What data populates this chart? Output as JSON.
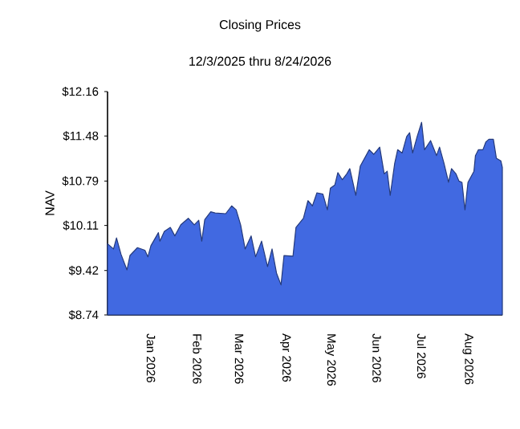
{
  "chart_data": {
    "type": "area",
    "title": "Closing Prices",
    "subtitle": "12/3/2025 thru 8/24/2026",
    "ylabel": "NAV",
    "xlim": [
      "2025-12-03",
      "2026-08-24"
    ],
    "ylim": [
      8.74,
      12.16
    ],
    "xticks": [
      {
        "value": "2026-01-01",
        "label": "Jan 2026"
      },
      {
        "value": "2026-02-01",
        "label": "Feb 2026"
      },
      {
        "value": "2026-03-01",
        "label": "Mar 2026"
      },
      {
        "value": "2026-04-01",
        "label": "Apr 2026"
      },
      {
        "value": "2026-05-01",
        "label": "May 2026"
      },
      {
        "value": "2026-06-01",
        "label": "Jun 2026"
      },
      {
        "value": "2026-07-01",
        "label": "Jul 2026"
      },
      {
        "value": "2026-08-01",
        "label": "Aug 2026"
      }
    ],
    "yticks": [
      {
        "value": 8.74,
        "label": "$8.74"
      },
      {
        "value": 9.42,
        "label": "$9.42"
      },
      {
        "value": 10.11,
        "label": "$10.11"
      },
      {
        "value": 10.79,
        "label": "$10.79"
      },
      {
        "value": 11.48,
        "label": "$11.48"
      },
      {
        "value": 12.16,
        "label": "$12.16"
      }
    ],
    "grid": false,
    "legend": false,
    "series": [
      {
        "color": "#4169e1",
        "x": [
          "2025-12-03",
          "2025-12-07",
          "2025-12-09",
          "2025-12-12",
          "2025-12-16",
          "2025-12-18",
          "2025-12-23",
          "2025-12-28",
          "2025-12-30",
          "2026-01-01",
          "2026-01-06",
          "2026-01-07",
          "2026-01-10",
          "2026-01-14",
          "2026-01-17",
          "2026-01-21",
          "2026-01-26",
          "2026-01-30",
          "2026-02-02",
          "2026-02-04",
          "2026-02-06",
          "2026-02-10",
          "2026-02-13",
          "2026-02-20",
          "2026-02-24",
          "2026-02-27",
          "2026-03-02",
          "2026-03-05",
          "2026-03-09",
          "2026-03-12",
          "2026-03-16",
          "2026-03-20",
          "2026-03-23",
          "2026-03-26",
          "2026-03-29",
          "2026-03-31",
          "2026-04-06",
          "2026-04-08",
          "2026-04-13",
          "2026-04-16",
          "2026-04-19",
          "2026-04-22",
          "2026-04-26",
          "2026-04-29",
          "2026-05-01",
          "2026-05-04",
          "2026-05-06",
          "2026-05-09",
          "2026-05-12",
          "2026-05-14",
          "2026-05-18",
          "2026-05-21",
          "2026-05-27",
          "2026-05-30",
          "2026-06-03",
          "2026-06-06",
          "2026-06-08",
          "2026-06-10",
          "2026-06-13",
          "2026-06-15",
          "2026-06-18",
          "2026-06-21",
          "2026-06-23",
          "2026-06-25",
          "2026-06-28",
          "2026-07-01",
          "2026-07-03",
          "2026-07-07",
          "2026-07-11",
          "2026-07-13",
          "2026-07-16",
          "2026-07-19",
          "2026-07-21",
          "2026-07-24",
          "2026-07-26",
          "2026-07-28",
          "2026-07-30",
          "2026-08-01",
          "2026-08-05",
          "2026-08-06",
          "2026-08-08",
          "2026-08-11",
          "2026-08-13",
          "2026-08-15",
          "2026-08-18",
          "2026-08-20",
          "2026-08-23",
          "2026-08-24"
        ],
        "values": [
          9.83,
          9.75,
          9.92,
          9.67,
          9.43,
          9.65,
          9.77,
          9.73,
          9.63,
          9.8,
          10.0,
          9.87,
          10.02,
          10.08,
          9.95,
          10.12,
          10.22,
          10.12,
          10.19,
          9.87,
          10.2,
          10.32,
          10.3,
          10.29,
          10.41,
          10.35,
          10.12,
          9.75,
          9.95,
          9.63,
          9.87,
          9.48,
          9.75,
          9.38,
          9.2,
          9.65,
          9.64,
          10.08,
          10.22,
          10.49,
          10.41,
          10.61,
          10.59,
          10.35,
          10.68,
          10.73,
          10.92,
          10.81,
          10.9,
          10.98,
          10.57,
          11.02,
          11.27,
          11.2,
          11.31,
          10.9,
          10.94,
          10.57,
          11.06,
          11.27,
          11.22,
          11.47,
          11.53,
          11.22,
          11.47,
          11.69,
          11.27,
          11.41,
          11.18,
          11.31,
          11.06,
          10.77,
          10.98,
          10.9,
          10.79,
          10.77,
          10.35,
          10.77,
          10.94,
          11.18,
          11.27,
          11.27,
          11.39,
          11.43,
          11.43,
          11.14,
          11.1,
          11.0
        ]
      }
    ]
  }
}
